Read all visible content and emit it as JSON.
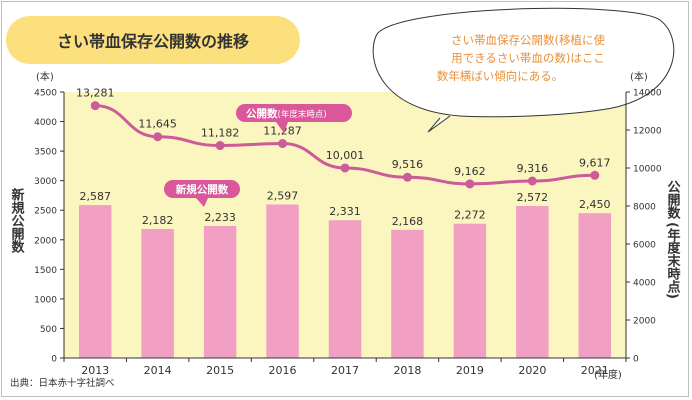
{
  "title": "さい帯血保存公開数の推移",
  "note": [
    "さい帯血保存公開数(移植に使",
    "用できるさい帯血の数)はここ",
    "数年横ばい傾向にある。"
  ],
  "left_unit": "(本)",
  "right_unit": "(本)",
  "left_axis_label": "新規公開数",
  "right_axis_label_main": "公開数",
  "right_axis_label_sub": "(年度末時点)",
  "x_unit": "(年度)",
  "source": "出典：日本赤十字社調べ",
  "colors": {
    "background": "#fbf5c0",
    "bar": "#f1a0c4",
    "line": "#cc5c99",
    "title_bg": "#fce07d",
    "note_text": "#e8903a",
    "label_bg": "#d9579a"
  },
  "chart_data": {
    "type": "bar",
    "categories": [
      "2013",
      "2014",
      "2015",
      "2016",
      "2017",
      "2018",
      "2019",
      "2020",
      "2021"
    ],
    "series": [
      {
        "name": "新規公開数",
        "type": "bar",
        "axis": "left",
        "values": [
          2587,
          2182,
          2233,
          2597,
          2331,
          2168,
          2272,
          2572,
          2450
        ]
      },
      {
        "name": "公開数(年度末時点)",
        "type": "line",
        "axis": "right",
        "values": [
          13281,
          11645,
          11182,
          11287,
          10001,
          9516,
          9162,
          9316,
          9617
        ]
      }
    ],
    "ylim_left": [
      0,
      4500
    ],
    "yticks_left": [
      0,
      500,
      1000,
      1500,
      2000,
      2500,
      3000,
      3500,
      4000,
      4500
    ],
    "ylim_right": [
      0,
      14000
    ],
    "yticks_right": [
      0,
      2000,
      4000,
      6000,
      8000,
      10000,
      12000,
      14000
    ],
    "bar_labels": [
      "2,587",
      "2,182",
      "2,233",
      "2,597",
      "2,331",
      "2,168",
      "2,272",
      "2,572",
      "2,450"
    ],
    "line_labels": [
      "13,281",
      "11,645",
      "11,182",
      "11,287",
      "10,001",
      "9,516",
      "9,162",
      "9,316",
      "9,617"
    ],
    "annotations": {
      "bar": "新規公開数",
      "line": "公開数",
      "line_suffix": "(年度末時点)"
    },
    "grid": false
  }
}
